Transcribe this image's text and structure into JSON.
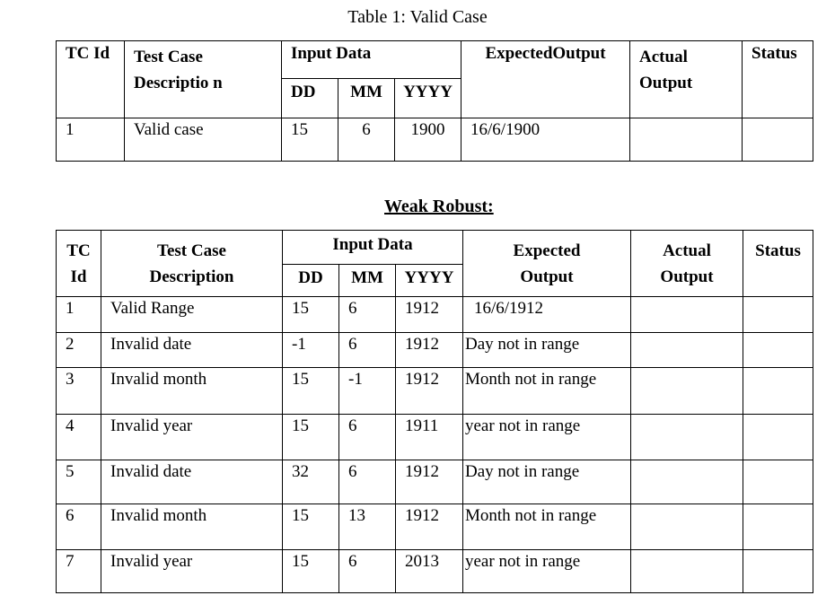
{
  "table1": {
    "caption": "Table 1: Valid Case",
    "headers": {
      "tc_id": "TC Id",
      "description": "Test Case Descriptio n",
      "input_data": "Input Data",
      "dd": "DD",
      "mm": "MM",
      "yyyy": "YYYY",
      "expected": "ExpectedOutput",
      "actual": "Actual Output",
      "status": "Status"
    },
    "rows": [
      {
        "id": "1",
        "description": "Valid case",
        "dd": "15",
        "mm": "6",
        "yyyy": "1900",
        "expected": "16/6/1900",
        "actual": "",
        "status": ""
      }
    ]
  },
  "table2": {
    "heading": "Weak Robust:",
    "headers": {
      "tc_id": "TC Id",
      "description": "Test Case Description",
      "input_data": "Input Data",
      "dd": "DD",
      "mm": "MM",
      "yyyy": "YYYY",
      "expected": "Expected Output",
      "actual": "Actual Output",
      "status": "Status"
    },
    "rows": [
      {
        "id": "1",
        "description": "Valid Range",
        "dd": "15",
        "mm": "6",
        "yyyy": "1912",
        "expected": "16/6/1912",
        "actual": "",
        "status": ""
      },
      {
        "id": "2",
        "description": "Invalid date",
        "dd": "-1",
        "mm": "6",
        "yyyy": "1912",
        "expected": "Day not in range",
        "actual": "",
        "status": ""
      },
      {
        "id": "3",
        "description": "Invalid month",
        "dd": "15",
        "mm": "-1",
        "yyyy": "1912",
        "expected": "Month not in range",
        "actual": "",
        "status": ""
      },
      {
        "id": "4",
        "description": "Invalid year",
        "dd": "15",
        "mm": "6",
        "yyyy": "1911",
        "expected": "year not in range",
        "actual": "",
        "status": ""
      },
      {
        "id": "5",
        "description": "Invalid date",
        "dd": "32",
        "mm": "6",
        "yyyy": "1912",
        "expected": "Day not in range",
        "actual": "",
        "status": ""
      },
      {
        "id": "6",
        "description": "Invalid month",
        "dd": "15",
        "mm": "13",
        "yyyy": "1912",
        "expected": "Month not in range",
        "actual": "",
        "status": ""
      },
      {
        "id": "7",
        "description": "Invalid year",
        "dd": "15",
        "mm": "6",
        "yyyy": "2013",
        "expected": "year not in range",
        "actual": "",
        "status": ""
      }
    ]
  }
}
